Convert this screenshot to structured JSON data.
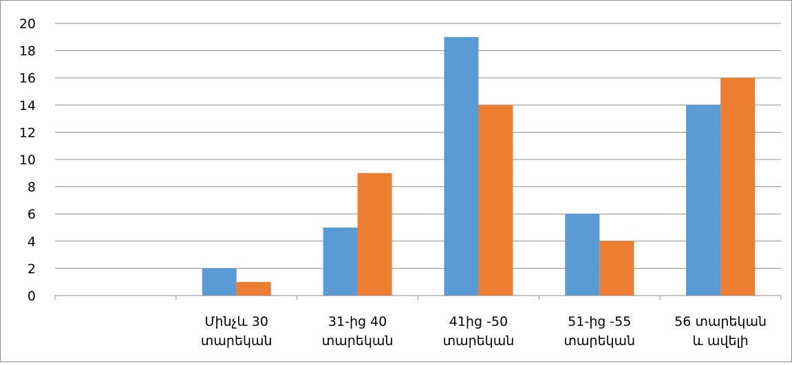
{
  "chart_data": {
    "type": "bar",
    "title": "",
    "xlabel": "",
    "ylabel": "",
    "categories": [
      "",
      "Մինչև 30\nտարեկան",
      "31-ից 40\nտարեկան",
      "41ից -50\nտարեկան",
      "51-ից -55\nտարեկան",
      "56 տարեկան\nև ավելի"
    ],
    "series": [
      {
        "values": [
          0,
          2,
          5,
          19,
          6,
          14
        ]
      },
      {
        "values": [
          0,
          1,
          9,
          14,
          4,
          16
        ]
      }
    ],
    "ylim": [
      0,
      20
    ],
    "yticks": [
      "0",
      "2",
      "4",
      "6",
      "8",
      "10",
      "12",
      "14",
      "16",
      "18",
      "20"
    ],
    "grid": true,
    "legend": "none",
    "colors": [
      "#5B9BD5",
      "#ED7D31"
    ]
  }
}
